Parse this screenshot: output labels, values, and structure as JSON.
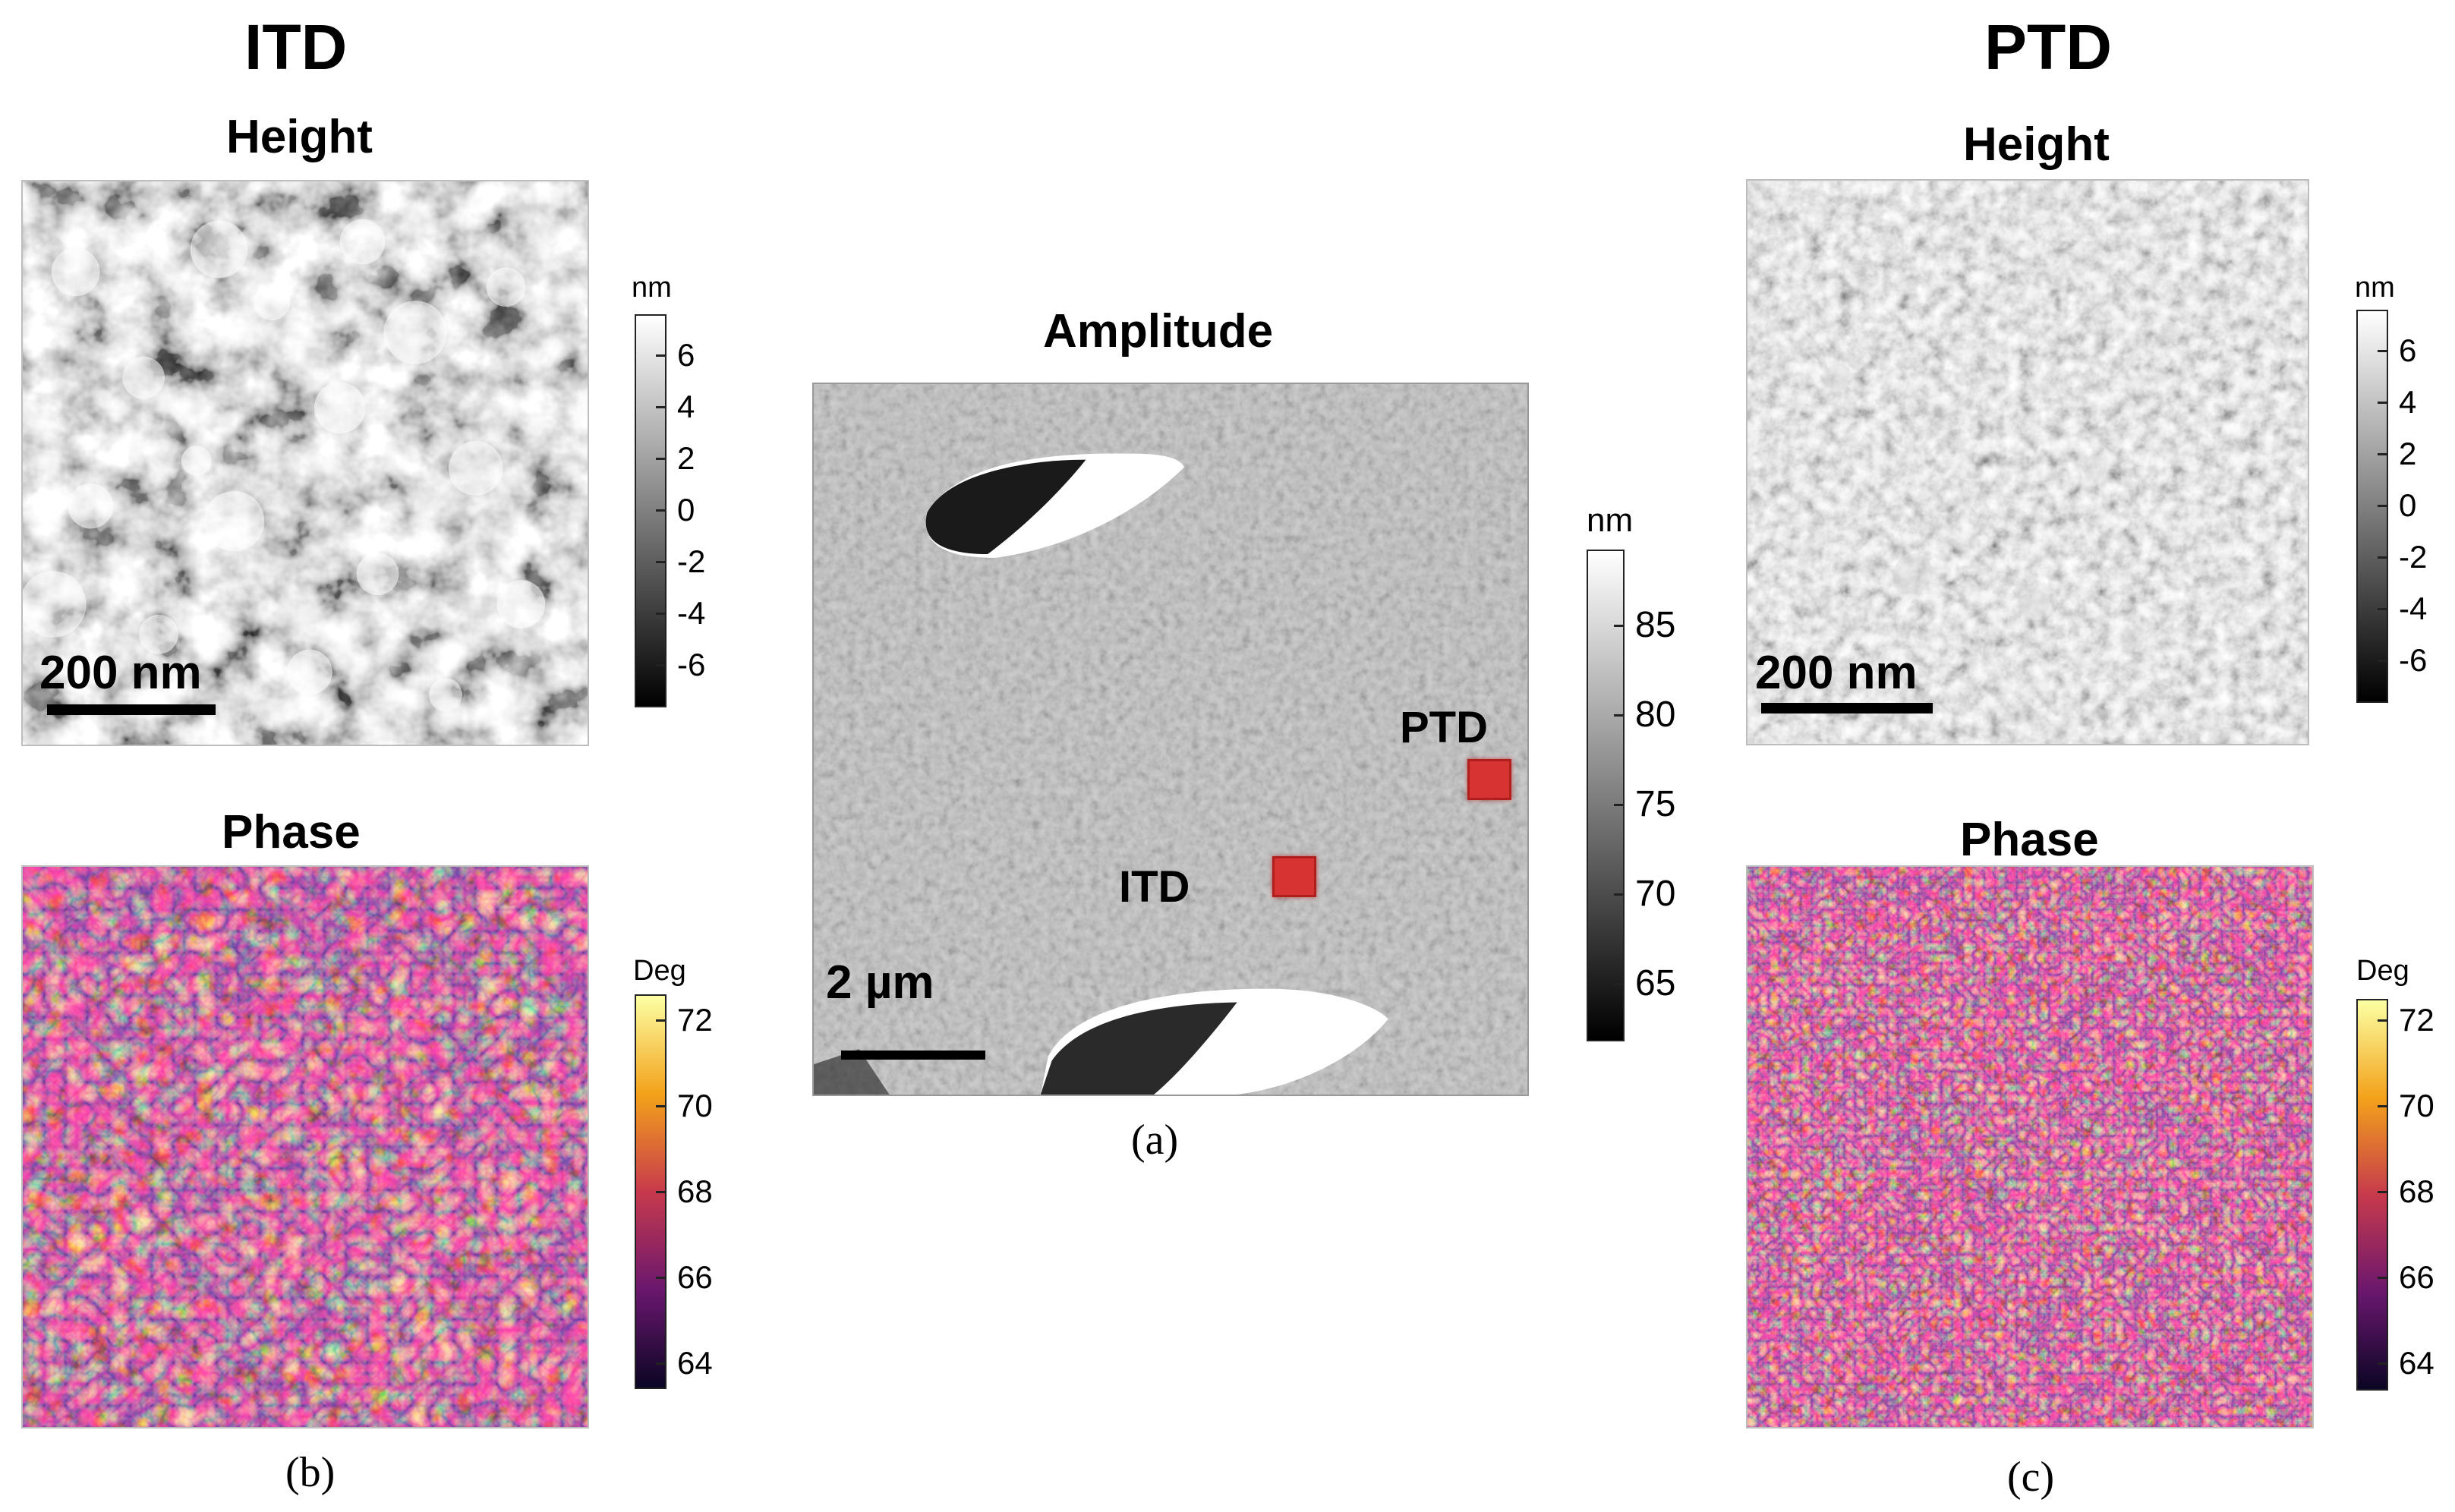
{
  "itd": {
    "title": "ITD",
    "height_title": "Height",
    "phase_title": "Phase",
    "scalebar": "200 nm",
    "height_colorbar": {
      "unit": "nm",
      "ticks": [
        "6",
        "4",
        "2",
        "0",
        "-2",
        "-4",
        "-6"
      ]
    },
    "phase_colorbar": {
      "unit": "Deg",
      "ticks": [
        "72",
        "70",
        "68",
        "66",
        "64"
      ]
    },
    "caption": "(b)"
  },
  "center": {
    "title": "Amplitude",
    "scalebar": "2 µm",
    "colorbar": {
      "unit": "nm",
      "ticks": [
        "85",
        "80",
        "75",
        "70",
        "65"
      ]
    },
    "marker_ptd_label": "PTD",
    "marker_itd_label": "ITD",
    "caption": "(a)"
  },
  "ptd": {
    "title": "PTD",
    "height_title": "Height",
    "phase_title": "Phase",
    "scalebar": "200 nm",
    "height_colorbar": {
      "unit": "nm",
      "ticks": [
        "6",
        "4",
        "2",
        "0",
        "-2",
        "-4",
        "-6"
      ]
    },
    "phase_colorbar": {
      "unit": "Deg",
      "ticks": [
        "72",
        "70",
        "68",
        "66",
        "64"
      ]
    },
    "caption": "(c)"
  },
  "colors": {
    "inferno_low": "#1a0a3a",
    "inferno_mid": "#b03a60",
    "inferno_high": "#fff2a0",
    "marker": "#d83333"
  }
}
